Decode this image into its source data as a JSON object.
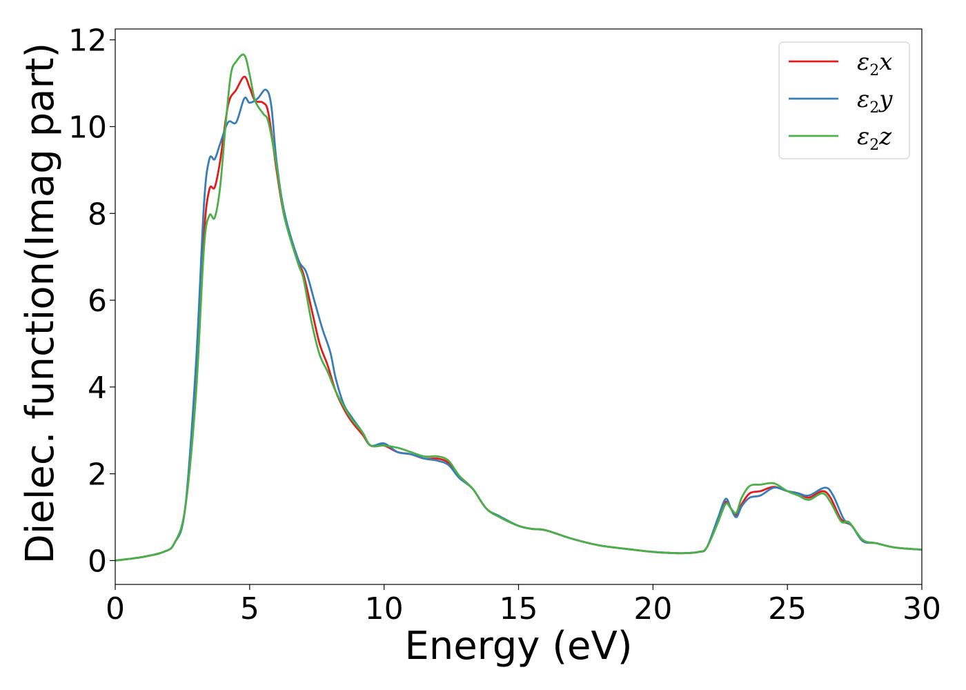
{
  "chart_data": {
    "type": "line",
    "xlabel": "Energy (eV)",
    "ylabel": "Dielec. function(Imag part)",
    "xlim": [
      0,
      30
    ],
    "ylim": [
      -0.55,
      12.25
    ],
    "xticks": [
      0,
      5,
      10,
      15,
      20,
      25,
      30
    ],
    "yticks": [
      0,
      2,
      4,
      6,
      8,
      10,
      12
    ],
    "grid": false,
    "legend_position": "top-right",
    "series": [
      {
        "name": "ε2x",
        "legend": {
          "base": "ε",
          "sub": "2",
          "axis": "x"
        },
        "color": "#e41a1c",
        "points": [
          [
            0,
            0
          ],
          [
            1,
            0.08
          ],
          [
            1.8,
            0.2
          ],
          [
            2.2,
            0.4
          ],
          [
            2.6,
            1.2
          ],
          [
            3.0,
            4.0
          ],
          [
            3.3,
            7.5
          ],
          [
            3.5,
            8.55
          ],
          [
            3.7,
            8.6
          ],
          [
            3.9,
            9.2
          ],
          [
            4.2,
            10.5
          ],
          [
            4.5,
            10.85
          ],
          [
            4.8,
            11.15
          ],
          [
            5.0,
            10.9
          ],
          [
            5.2,
            10.6
          ],
          [
            5.5,
            10.55
          ],
          [
            5.7,
            10.3
          ],
          [
            6.0,
            9.0
          ],
          [
            6.3,
            7.9
          ],
          [
            6.8,
            6.9
          ],
          [
            7.0,
            6.6
          ],
          [
            7.3,
            5.8
          ],
          [
            7.6,
            5.0
          ],
          [
            7.9,
            4.5
          ],
          [
            8.2,
            3.9
          ],
          [
            8.5,
            3.5
          ],
          [
            8.8,
            3.2
          ],
          [
            9.2,
            2.9
          ],
          [
            9.5,
            2.65
          ],
          [
            10.0,
            2.65
          ],
          [
            10.5,
            2.5
          ],
          [
            11.0,
            2.45
          ],
          [
            11.5,
            2.35
          ],
          [
            12.0,
            2.35
          ],
          [
            12.4,
            2.25
          ],
          [
            12.8,
            1.95
          ],
          [
            13.3,
            1.65
          ],
          [
            13.8,
            1.2
          ],
          [
            14.3,
            1.0
          ],
          [
            15.0,
            0.8
          ],
          [
            15.5,
            0.73
          ],
          [
            16.0,
            0.7
          ],
          [
            17.0,
            0.5
          ],
          [
            18.0,
            0.35
          ],
          [
            19.0,
            0.27
          ],
          [
            20.0,
            0.2
          ],
          [
            21.0,
            0.17
          ],
          [
            21.7,
            0.2
          ],
          [
            22.0,
            0.3
          ],
          [
            22.4,
            0.9
          ],
          [
            22.7,
            1.35
          ],
          [
            22.9,
            1.2
          ],
          [
            23.1,
            1.05
          ],
          [
            23.3,
            1.3
          ],
          [
            23.6,
            1.55
          ],
          [
            24.0,
            1.6
          ],
          [
            24.5,
            1.7
          ],
          [
            25.0,
            1.6
          ],
          [
            25.4,
            1.55
          ],
          [
            25.8,
            1.45
          ],
          [
            26.3,
            1.6
          ],
          [
            26.6,
            1.45
          ],
          [
            27.0,
            0.95
          ],
          [
            27.4,
            0.8
          ],
          [
            27.8,
            0.45
          ],
          [
            28.3,
            0.4
          ],
          [
            29.0,
            0.3
          ],
          [
            30.0,
            0.25
          ]
        ]
      },
      {
        "name": "ε2y",
        "legend": {
          "base": "ε",
          "sub": "2",
          "axis": "y"
        },
        "color": "#377eb8",
        "points": [
          [
            0,
            0
          ],
          [
            1,
            0.08
          ],
          [
            1.8,
            0.2
          ],
          [
            2.2,
            0.4
          ],
          [
            2.6,
            1.2
          ],
          [
            3.0,
            4.5
          ],
          [
            3.3,
            8.2
          ],
          [
            3.5,
            9.25
          ],
          [
            3.7,
            9.25
          ],
          [
            3.9,
            9.6
          ],
          [
            4.2,
            10.1
          ],
          [
            4.5,
            10.1
          ],
          [
            4.8,
            10.65
          ],
          [
            5.0,
            10.55
          ],
          [
            5.3,
            10.65
          ],
          [
            5.6,
            10.85
          ],
          [
            5.8,
            10.5
          ],
          [
            6.0,
            9.2
          ],
          [
            6.3,
            8.0
          ],
          [
            6.8,
            6.95
          ],
          [
            7.1,
            6.65
          ],
          [
            7.4,
            6.0
          ],
          [
            7.7,
            5.35
          ],
          [
            8.0,
            4.8
          ],
          [
            8.2,
            4.2
          ],
          [
            8.5,
            3.6
          ],
          [
            8.8,
            3.3
          ],
          [
            9.2,
            2.95
          ],
          [
            9.5,
            2.65
          ],
          [
            10.0,
            2.7
          ],
          [
            10.5,
            2.5
          ],
          [
            11.0,
            2.45
          ],
          [
            11.5,
            2.35
          ],
          [
            12.0,
            2.3
          ],
          [
            12.4,
            2.2
          ],
          [
            12.8,
            1.9
          ],
          [
            13.3,
            1.65
          ],
          [
            13.8,
            1.2
          ],
          [
            14.3,
            1.02
          ],
          [
            15.0,
            0.8
          ],
          [
            15.5,
            0.73
          ],
          [
            16.0,
            0.7
          ],
          [
            17.0,
            0.5
          ],
          [
            18.0,
            0.35
          ],
          [
            19.0,
            0.27
          ],
          [
            20.0,
            0.2
          ],
          [
            21.0,
            0.17
          ],
          [
            21.7,
            0.2
          ],
          [
            22.0,
            0.3
          ],
          [
            22.4,
            0.95
          ],
          [
            22.7,
            1.42
          ],
          [
            22.9,
            1.2
          ],
          [
            23.1,
            1.0
          ],
          [
            23.3,
            1.25
          ],
          [
            23.6,
            1.45
          ],
          [
            24.0,
            1.5
          ],
          [
            24.5,
            1.68
          ],
          [
            25.0,
            1.6
          ],
          [
            25.4,
            1.55
          ],
          [
            25.8,
            1.5
          ],
          [
            26.4,
            1.68
          ],
          [
            26.7,
            1.5
          ],
          [
            27.1,
            0.95
          ],
          [
            27.4,
            0.8
          ],
          [
            27.8,
            0.45
          ],
          [
            28.3,
            0.4
          ],
          [
            29.0,
            0.3
          ],
          [
            30.0,
            0.25
          ]
        ]
      },
      {
        "name": "ε2z",
        "legend": {
          "base": "ε",
          "sub": "2",
          "axis": "z"
        },
        "color": "#4daf4a",
        "points": [
          [
            0,
            0
          ],
          [
            1,
            0.08
          ],
          [
            1.8,
            0.2
          ],
          [
            2.2,
            0.4
          ],
          [
            2.6,
            1.2
          ],
          [
            3.0,
            3.8
          ],
          [
            3.3,
            7.2
          ],
          [
            3.5,
            7.95
          ],
          [
            3.7,
            7.9
          ],
          [
            3.9,
            8.6
          ],
          [
            4.1,
            10.0
          ],
          [
            4.3,
            11.2
          ],
          [
            4.5,
            11.5
          ],
          [
            4.8,
            11.65
          ],
          [
            5.0,
            11.2
          ],
          [
            5.2,
            10.6
          ],
          [
            5.5,
            10.3
          ],
          [
            5.7,
            10.1
          ],
          [
            6.0,
            9.1
          ],
          [
            6.3,
            7.9
          ],
          [
            6.8,
            6.85
          ],
          [
            7.0,
            6.5
          ],
          [
            7.3,
            5.5
          ],
          [
            7.6,
            4.75
          ],
          [
            7.9,
            4.35
          ],
          [
            8.2,
            3.9
          ],
          [
            8.5,
            3.55
          ],
          [
            8.8,
            3.25
          ],
          [
            9.2,
            2.95
          ],
          [
            9.5,
            2.65
          ],
          [
            10.0,
            2.65
          ],
          [
            10.5,
            2.6
          ],
          [
            11.0,
            2.5
          ],
          [
            11.5,
            2.4
          ],
          [
            12.0,
            2.4
          ],
          [
            12.4,
            2.3
          ],
          [
            12.8,
            1.95
          ],
          [
            13.3,
            1.65
          ],
          [
            13.8,
            1.2
          ],
          [
            14.3,
            1.0
          ],
          [
            15.0,
            0.8
          ],
          [
            15.5,
            0.73
          ],
          [
            16.0,
            0.7
          ],
          [
            17.0,
            0.5
          ],
          [
            18.0,
            0.35
          ],
          [
            19.0,
            0.27
          ],
          [
            20.0,
            0.2
          ],
          [
            21.0,
            0.17
          ],
          [
            21.7,
            0.2
          ],
          [
            22.0,
            0.3
          ],
          [
            22.4,
            0.85
          ],
          [
            22.7,
            1.3
          ],
          [
            22.9,
            1.2
          ],
          [
            23.1,
            1.1
          ],
          [
            23.3,
            1.45
          ],
          [
            23.6,
            1.72
          ],
          [
            24.0,
            1.75
          ],
          [
            24.5,
            1.78
          ],
          [
            25.0,
            1.6
          ],
          [
            25.4,
            1.5
          ],
          [
            25.8,
            1.4
          ],
          [
            26.3,
            1.55
          ],
          [
            26.6,
            1.35
          ],
          [
            27.0,
            0.9
          ],
          [
            27.3,
            0.88
          ],
          [
            27.8,
            0.48
          ],
          [
            28.3,
            0.4
          ],
          [
            29.0,
            0.3
          ],
          [
            30.0,
            0.25
          ]
        ]
      }
    ]
  }
}
